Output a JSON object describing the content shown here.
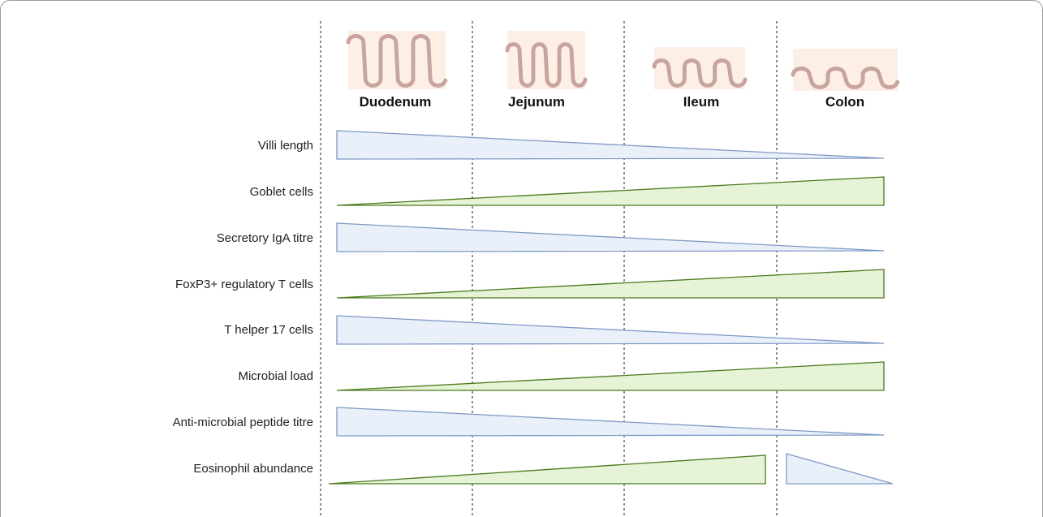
{
  "segments": [
    {
      "name": "Duodenum",
      "villi": "tall"
    },
    {
      "name": "Jejunum",
      "villi": "medium"
    },
    {
      "name": "Ileum",
      "villi": "short"
    },
    {
      "name": "Colon",
      "villi": "flat"
    }
  ],
  "rows": [
    {
      "label": "Villi length",
      "trend": "decreasing"
    },
    {
      "label": "Goblet cells",
      "trend": "increasing"
    },
    {
      "label": "Secretory IgA titre",
      "trend": "decreasing"
    },
    {
      "label": "FoxP3+ regulatory T cells",
      "trend": "increasing"
    },
    {
      "label": "T helper 17 cells",
      "trend": "decreasing"
    },
    {
      "label": "Microbial load",
      "trend": "increasing"
    },
    {
      "label": "Anti-microbial peptide titre",
      "trend": "decreasing"
    },
    {
      "label": "Eosinophil abundance",
      "trend": "increasing-then-decreasing"
    }
  ],
  "colors": {
    "increasing_fill": "#e6f3d6",
    "increasing_stroke": "#4a7a1e",
    "decreasing_fill": "#eaf0fa",
    "decreasing_stroke": "#7f99c6",
    "tissue_bg": "#fdeee6",
    "tissue_outline": "#c8a59c",
    "divider": "#333333"
  }
}
